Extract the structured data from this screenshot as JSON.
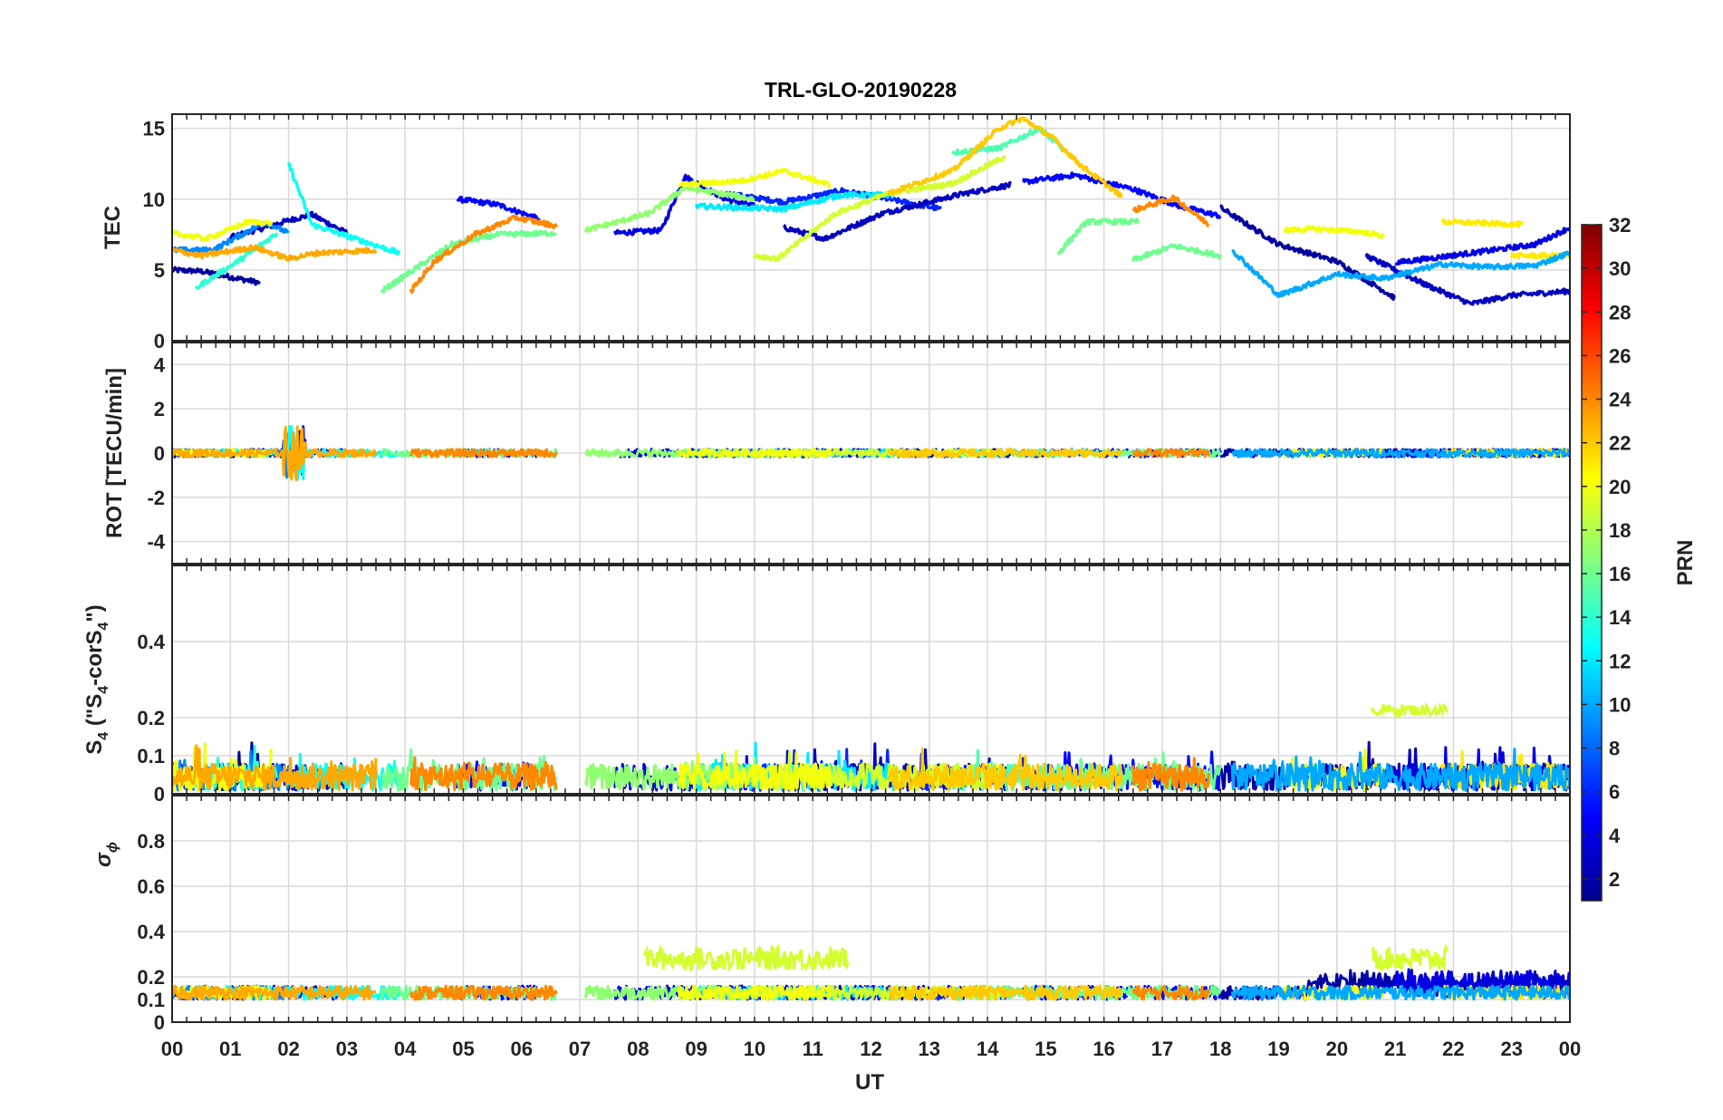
{
  "chart_data": {
    "type": "line",
    "title": "TRL-GLO-20190228",
    "xlabel": "UT",
    "x_ticks": [
      "00",
      "01",
      "02",
      "03",
      "04",
      "05",
      "06",
      "07",
      "08",
      "09",
      "10",
      "11",
      "12",
      "13",
      "14",
      "15",
      "16",
      "17",
      "18",
      "19",
      "20",
      "21",
      "22",
      "23",
      "00"
    ],
    "x_range_hours": [
      0,
      24
    ],
    "panels": [
      {
        "ylabel": "TEC",
        "ylim": [
          0,
          16
        ],
        "yticks": [
          0,
          5,
          10,
          15
        ]
      },
      {
        "ylabel": "ROT [TECU/min]",
        "ylim": [
          -5,
          5
        ],
        "yticks": [
          -4,
          -2,
          0,
          2,
          4
        ]
      },
      {
        "ylabel_parts": [
          "S",
          "4",
          " (\"S",
          "4",
          "-corS",
          "4",
          "\")"
        ],
        "ylim": [
          0,
          0.6
        ],
        "yticks": [
          0,
          0.1,
          0.2,
          0.4
        ]
      },
      {
        "ylabel_parts": [
          "σ",
          "ϕ"
        ],
        "ylim": [
          0,
          1
        ],
        "yticks": [
          0,
          0.1,
          0.2,
          0.4,
          0.6,
          0.8
        ]
      }
    ],
    "colorbar": {
      "label": "PRN",
      "range": [
        1,
        32
      ],
      "ticks": [
        2,
        4,
        6,
        8,
        10,
        12,
        14,
        16,
        18,
        20,
        22,
        24,
        26,
        28,
        30,
        32
      ],
      "colormap": "jet"
    },
    "series": [
      {
        "prn": 2,
        "tec": [
          [
            0,
            5
          ],
          [
            0.5,
            4.9
          ],
          [
            1,
            4.5
          ],
          [
            1.5,
            4.1
          ]
        ]
      },
      {
        "prn": 3,
        "tec": [
          [
            1,
            7.3
          ],
          [
            1.6,
            8
          ],
          [
            2,
            8.5
          ],
          [
            2.4,
            8.9
          ],
          [
            3,
            7.6
          ]
        ]
      },
      {
        "prn": 5,
        "tec": [
          [
            4.9,
            10
          ],
          [
            5.6,
            9.6
          ],
          [
            6.3,
            8.6
          ]
        ]
      },
      {
        "prn": 4,
        "tec": [
          [
            7.6,
            7.6
          ],
          [
            8.4,
            7.8
          ],
          [
            8.8,
            11.6
          ],
          [
            9.5,
            10
          ],
          [
            10,
            9.5
          ]
        ]
      },
      {
        "prn": 6,
        "tec": [
          [
            9.5,
            10.4
          ],
          [
            10.5,
            9.8
          ],
          [
            11.5,
            10.6
          ],
          [
            12.3,
            10
          ],
          [
            13.2,
            9.3
          ]
        ]
      },
      {
        "prn": 3,
        "tec": [
          [
            10.5,
            8
          ],
          [
            11.2,
            7.2
          ],
          [
            12.2,
            9
          ],
          [
            13.6,
            10.4
          ],
          [
            14.4,
            11
          ]
        ]
      },
      {
        "prn": 5,
        "tec": [
          [
            14.6,
            11.2
          ],
          [
            15.5,
            11.7
          ],
          [
            16.5,
            10.7
          ],
          [
            17.3,
            9.5
          ],
          [
            18,
            8.8
          ]
        ]
      },
      {
        "prn": 2,
        "tec": [
          [
            18,
            9.4
          ],
          [
            19,
            6.8
          ],
          [
            20,
            5.6
          ],
          [
            21,
            3
          ]
        ]
      },
      {
        "prn": 3,
        "tec": [
          [
            20.5,
            6
          ],
          [
            21.5,
            4
          ],
          [
            22.3,
            2.6
          ],
          [
            23,
            3.2
          ],
          [
            24,
            3.5
          ]
        ]
      },
      {
        "prn": 4,
        "tec": [
          [
            21,
            5.5
          ],
          [
            22.5,
            6.3
          ],
          [
            23.4,
            6.8
          ],
          [
            24,
            8
          ]
        ]
      },
      {
        "prn": 9,
        "tec": [
          [
            0,
            6.4
          ],
          [
            0.7,
            6.4
          ],
          [
            1.6,
            8.4
          ],
          [
            2,
            7.6
          ]
        ]
      },
      {
        "prn": 13,
        "tec": [
          [
            2,
            12.5
          ],
          [
            2.4,
            8.2
          ],
          [
            3.3,
            7
          ],
          [
            3.9,
            6.2
          ]
        ]
      },
      {
        "prn": 14,
        "tec": [
          [
            0.4,
            3.7
          ],
          [
            1.2,
            5.8
          ],
          [
            1.8,
            7.6
          ]
        ]
      },
      {
        "prn": 15,
        "tec": [
          [
            13.4,
            13.3
          ],
          [
            14.2,
            13.6
          ],
          [
            14.9,
            15
          ],
          [
            15.3,
            13.5
          ]
        ]
      },
      {
        "prn": 12,
        "tec": [
          [
            9,
            9.5
          ],
          [
            10.5,
            9.3
          ],
          [
            11.5,
            10.3
          ],
          [
            12.4,
            10.3
          ]
        ]
      },
      {
        "prn": 16,
        "tec": [
          [
            3.6,
            3.5
          ],
          [
            4.8,
            6.8
          ],
          [
            5.6,
            7.5
          ],
          [
            6.6,
            7.6
          ]
        ]
      },
      {
        "prn": 17,
        "tec": [
          [
            7.1,
            7.8
          ],
          [
            8.2,
            9
          ],
          [
            8.8,
            10.8
          ],
          [
            10,
            10
          ]
        ]
      },
      {
        "prn": 16,
        "tec": [
          [
            15.2,
            6.1
          ],
          [
            15.7,
            8.4
          ],
          [
            16.6,
            8.4
          ]
        ]
      },
      {
        "prn": 16,
        "tec": [
          [
            16.5,
            5.7
          ],
          [
            17.2,
            6.7
          ],
          [
            18,
            6
          ]
        ]
      },
      {
        "prn": 19,
        "tec": [
          [
            10,
            6
          ],
          [
            10.4,
            5.8
          ],
          [
            11.4,
            9
          ],
          [
            12.3,
            10.4
          ],
          [
            13.4,
            11.1
          ],
          [
            14.3,
            13
          ]
        ]
      },
      {
        "prn": 20,
        "tec": [
          [
            8.7,
            11
          ],
          [
            9.8,
            11.3
          ],
          [
            10.5,
            12
          ],
          [
            11.3,
            11
          ]
        ]
      },
      {
        "prn": 20,
        "tec": [
          [
            19.1,
            7.8
          ],
          [
            19.6,
            7.9
          ],
          [
            20.4,
            7.7
          ],
          [
            20.8,
            7.4
          ]
        ]
      },
      {
        "prn": 21,
        "tec": [
          [
            21.8,
            8.4
          ],
          [
            23.2,
            8.2
          ]
        ]
      },
      {
        "prn": 20,
        "tec": [
          [
            0,
            7.6
          ],
          [
            0.6,
            7.2
          ],
          [
            1.3,
            8.4
          ],
          [
            1.7,
            8.3
          ]
        ]
      },
      {
        "prn": 21,
        "tec": [
          [
            23,
            6
          ],
          [
            24,
            6
          ]
        ]
      },
      {
        "prn": 23,
        "tec": [
          [
            0,
            6.4
          ],
          [
            0.5,
            6
          ],
          [
            1.4,
            6.6
          ],
          [
            2,
            5.8
          ],
          [
            2.5,
            6.2
          ],
          [
            3.5,
            6.4
          ]
        ]
      },
      {
        "prn": 22,
        "tec": [
          [
            12.3,
            10.4
          ],
          [
            13.4,
            12
          ],
          [
            14.2,
            15
          ],
          [
            14.6,
            15.7
          ],
          [
            15.1,
            14.4
          ],
          [
            15.6,
            12.4
          ],
          [
            16.3,
            10.2
          ]
        ]
      },
      {
        "prn": 24,
        "tec": [
          [
            4.1,
            3.5
          ],
          [
            4.5,
            5.6
          ],
          [
            5.2,
            7.5
          ],
          [
            5.9,
            8.7
          ],
          [
            6.6,
            8.1
          ]
        ]
      },
      {
        "prn": 24,
        "tec": [
          [
            16.5,
            9.2
          ],
          [
            17.2,
            10.1
          ],
          [
            17.8,
            8.2
          ]
        ]
      },
      {
        "prn": 10,
        "tec": [
          [
            18.2,
            6.4
          ],
          [
            19,
            3.2
          ],
          [
            20,
            4.7
          ],
          [
            20.8,
            4.4
          ],
          [
            21.8,
            5.4
          ],
          [
            22.6,
            5.2
          ],
          [
            23.4,
            5.3
          ],
          [
            24,
            6.2
          ]
        ]
      }
    ],
    "s4_highlight": {
      "prn": 19,
      "t_range": [
        20.6,
        21.9
      ],
      "value": 0.22
    },
    "sigma_highlight": {
      "prn": 19,
      "t_ranges": [
        [
          8.1,
          10
        ],
        [
          10,
          11.6
        ],
        [
          20.6,
          21.9
        ]
      ],
      "value": 0.28
    }
  }
}
